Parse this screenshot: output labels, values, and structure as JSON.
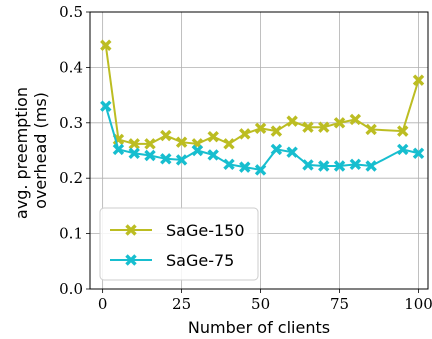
{
  "chart_data": {
    "type": "line",
    "title": "",
    "xlabel": "Number of clients",
    "ylabel_lines": [
      "avg. preemption",
      "overhead (ms)"
    ],
    "xlim": [
      -4,
      103
    ],
    "ylim": [
      0.0,
      0.5
    ],
    "xticks": [
      0,
      25,
      50,
      75,
      100
    ],
    "xtick_labels": [
      "0",
      "25",
      "50",
      "75",
      "100"
    ],
    "yticks": [
      0.0,
      0.1,
      0.2,
      0.3,
      0.4,
      0.5
    ],
    "ytick_labels": [
      "0.0",
      "0.1",
      "0.2",
      "0.3",
      "0.4",
      "0.5"
    ],
    "grid": true,
    "legend_position": "lower-left",
    "series": [
      {
        "name": "SaGe-150",
        "color": "#bcbd22",
        "marker": "x-cross",
        "points": [
          {
            "x": 1,
            "y": 0.44
          },
          {
            "x": 5,
            "y": 0.27
          },
          {
            "x": 10,
            "y": 0.262
          },
          {
            "x": 15,
            "y": 0.262
          },
          {
            "x": 20,
            "y": 0.277
          },
          {
            "x": 25,
            "y": 0.265
          },
          {
            "x": 30,
            "y": 0.262
          },
          {
            "x": 35,
            "y": 0.275
          },
          {
            "x": 40,
            "y": 0.262
          },
          {
            "x": 45,
            "y": 0.28
          },
          {
            "x": 50,
            "y": 0.29
          },
          {
            "x": 55,
            "y": 0.285
          },
          {
            "x": 60,
            "y": 0.303
          },
          {
            "x": 65,
            "y": 0.292
          },
          {
            "x": 70,
            "y": 0.292
          },
          {
            "x": 75,
            "y": 0.3
          },
          {
            "x": 80,
            "y": 0.306
          },
          {
            "x": 85,
            "y": 0.288
          },
          {
            "x": 95,
            "y": 0.285
          },
          {
            "x": 100,
            "y": 0.377
          }
        ]
      },
      {
        "name": "SaGe-75",
        "color": "#17becf",
        "marker": "x-cross",
        "points": [
          {
            "x": 1,
            "y": 0.33
          },
          {
            "x": 5,
            "y": 0.252
          },
          {
            "x": 10,
            "y": 0.245
          },
          {
            "x": 15,
            "y": 0.241
          },
          {
            "x": 20,
            "y": 0.235
          },
          {
            "x": 25,
            "y": 0.233
          },
          {
            "x": 30,
            "y": 0.25
          },
          {
            "x": 35,
            "y": 0.242
          },
          {
            "x": 40,
            "y": 0.225
          },
          {
            "x": 45,
            "y": 0.22
          },
          {
            "x": 50,
            "y": 0.215
          },
          {
            "x": 55,
            "y": 0.252
          },
          {
            "x": 60,
            "y": 0.247
          },
          {
            "x": 65,
            "y": 0.224
          },
          {
            "x": 70,
            "y": 0.222
          },
          {
            "x": 75,
            "y": 0.222
          },
          {
            "x": 80,
            "y": 0.225
          },
          {
            "x": 85,
            "y": 0.222
          },
          {
            "x": 95,
            "y": 0.252
          },
          {
            "x": 100,
            "y": 0.245
          }
        ]
      }
    ]
  }
}
